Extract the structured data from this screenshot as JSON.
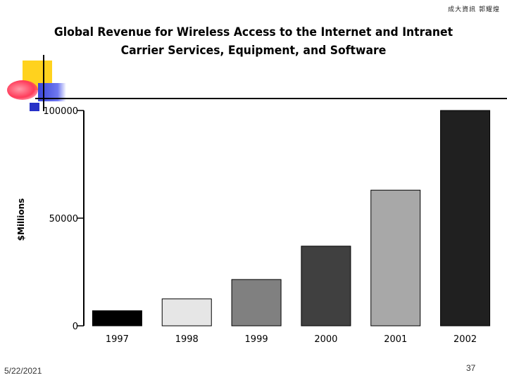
{
  "header": {
    "corner_note": "成大資訊 郭耀煌"
  },
  "footer": {
    "date": "5/22/2021",
    "page_number": "37"
  },
  "chart_data": {
    "type": "bar",
    "title": "Global Revenue for Wireless Access to the Internet and Intranet",
    "subtitle": "Carrier Services, Equipment, and Software",
    "xlabel": "",
    "ylabel": "$Millions",
    "categories": [
      "1997",
      "1998",
      "1999",
      "2000",
      "2001",
      "2002"
    ],
    "values": [
      7000,
      12500,
      21500,
      37000,
      63000,
      100000
    ],
    "bar_colors": [
      "#000000",
      "#e6e6e6",
      "#808080",
      "#404040",
      "#a8a8a8",
      "#202020"
    ],
    "ylim": [
      0,
      100000
    ],
    "yticks": [
      0,
      50000,
      100000
    ],
    "ytick_labels": [
      "0",
      "50000",
      "100000"
    ],
    "grid": false,
    "legend": "none"
  }
}
